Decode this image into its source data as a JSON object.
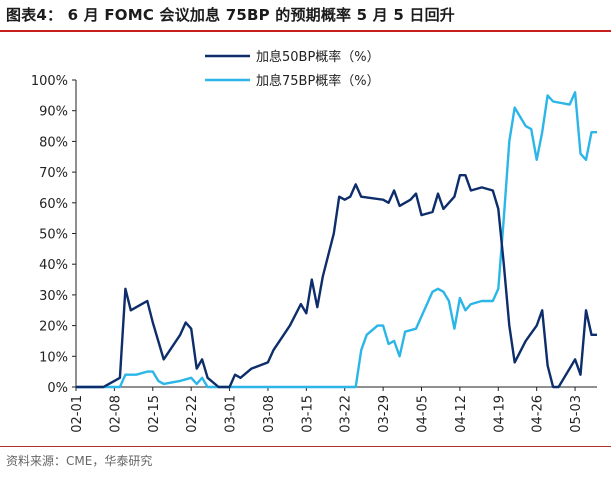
{
  "header": {
    "title": "图表4：  6 月 FOMC 会议加息 75BP 的预期概率 5 月 5 日回升"
  },
  "footer": {
    "source": "资料来源：CME，华泰研究"
  },
  "colors": {
    "series_50bp": "#0d2d6b",
    "series_75bp": "#2cb6e8",
    "title_rule": "#c81e1e"
  },
  "chart_data": {
    "type": "line",
    "title": "",
    "xlabel": "",
    "ylabel": "",
    "ylim": [
      0,
      100
    ],
    "xlim": [
      "2022-02-01",
      "2022-05-06"
    ],
    "grid": false,
    "legend_position": "top-center",
    "y_ticks": [
      "0%",
      "10%",
      "20%",
      "30%",
      "40%",
      "50%",
      "60%",
      "70%",
      "80%",
      "90%",
      "100%"
    ],
    "y_tick_values": [
      0,
      10,
      20,
      30,
      40,
      50,
      60,
      70,
      80,
      90,
      100
    ],
    "x_ticks": [
      "02-01",
      "02-08",
      "02-15",
      "02-22",
      "03-01",
      "03-08",
      "03-15",
      "03-22",
      "03-29",
      "04-05",
      "04-12",
      "04-19",
      "04-26",
      "05-03"
    ],
    "x_tick_dates": [
      "2022-02-01",
      "2022-02-08",
      "2022-02-15",
      "2022-02-22",
      "2022-03-01",
      "2022-03-08",
      "2022-03-15",
      "2022-03-22",
      "2022-03-29",
      "2022-04-05",
      "2022-04-12",
      "2022-04-19",
      "2022-04-26",
      "2022-05-03"
    ],
    "series": [
      {
        "name": "加息50BP概率（%）",
        "points": [
          [
            "2022-02-01",
            0
          ],
          [
            "2022-02-06",
            0
          ],
          [
            "2022-02-08",
            2
          ],
          [
            "2022-02-09",
            3
          ],
          [
            "2022-02-10",
            32
          ],
          [
            "2022-02-11",
            25
          ],
          [
            "2022-02-13",
            27
          ],
          [
            "2022-02-14",
            28
          ],
          [
            "2022-02-15",
            21
          ],
          [
            "2022-02-17",
            9
          ],
          [
            "2022-02-20",
            17
          ],
          [
            "2022-02-21",
            21
          ],
          [
            "2022-02-22",
            19
          ],
          [
            "2022-02-23",
            6
          ],
          [
            "2022-02-24",
            9
          ],
          [
            "2022-02-25",
            3
          ],
          [
            "2022-02-27",
            0
          ],
          [
            "2022-03-01",
            0
          ],
          [
            "2022-03-02",
            4
          ],
          [
            "2022-03-03",
            3
          ],
          [
            "2022-03-05",
            6
          ],
          [
            "2022-03-08",
            8
          ],
          [
            "2022-03-09",
            12
          ],
          [
            "2022-03-12",
            20
          ],
          [
            "2022-03-14",
            27
          ],
          [
            "2022-03-15",
            24
          ],
          [
            "2022-03-16",
            35
          ],
          [
            "2022-03-17",
            26
          ],
          [
            "2022-03-18",
            36
          ],
          [
            "2022-03-20",
            50
          ],
          [
            "2022-03-21",
            62
          ],
          [
            "2022-03-22",
            61
          ],
          [
            "2022-03-23",
            62
          ],
          [
            "2022-03-24",
            66
          ],
          [
            "2022-03-25",
            62
          ],
          [
            "2022-03-29",
            61
          ],
          [
            "2022-03-30",
            60
          ],
          [
            "2022-03-31",
            64
          ],
          [
            "2022-04-01",
            59
          ],
          [
            "2022-04-03",
            61
          ],
          [
            "2022-04-04",
            63
          ],
          [
            "2022-04-05",
            56
          ],
          [
            "2022-04-07",
            57
          ],
          [
            "2022-04-08",
            63
          ],
          [
            "2022-04-09",
            58
          ],
          [
            "2022-04-11",
            62
          ],
          [
            "2022-04-12",
            69
          ],
          [
            "2022-04-13",
            69
          ],
          [
            "2022-04-14",
            64
          ],
          [
            "2022-04-16",
            65
          ],
          [
            "2022-04-18",
            64
          ],
          [
            "2022-04-19",
            58
          ],
          [
            "2022-04-20",
            40
          ],
          [
            "2022-04-21",
            20
          ],
          [
            "2022-04-22",
            8
          ],
          [
            "2022-04-24",
            15
          ],
          [
            "2022-04-26",
            20
          ],
          [
            "2022-04-27",
            25
          ],
          [
            "2022-04-28",
            7
          ],
          [
            "2022-04-29",
            0
          ],
          [
            "2022-04-30",
            0
          ],
          [
            "2022-05-02",
            6
          ],
          [
            "2022-05-03",
            9
          ],
          [
            "2022-05-04",
            4
          ],
          [
            "2022-05-05",
            25
          ],
          [
            "2022-05-06",
            17
          ],
          [
            "2022-05-07",
            17
          ]
        ]
      },
      {
        "name": "加息75BP概率（%）",
        "points": [
          [
            "2022-02-01",
            0
          ],
          [
            "2022-02-09",
            0
          ],
          [
            "2022-02-10",
            4
          ],
          [
            "2022-02-12",
            4
          ],
          [
            "2022-02-14",
            5
          ],
          [
            "2022-02-15",
            5
          ],
          [
            "2022-02-16",
            2
          ],
          [
            "2022-02-17",
            1
          ],
          [
            "2022-02-20",
            2
          ],
          [
            "2022-02-22",
            3
          ],
          [
            "2022-02-23",
            1
          ],
          [
            "2022-02-24",
            3
          ],
          [
            "2022-02-25",
            0
          ],
          [
            "2022-03-01",
            0
          ],
          [
            "2022-03-08",
            0
          ],
          [
            "2022-03-15",
            0
          ],
          [
            "2022-03-22",
            0
          ],
          [
            "2022-03-24",
            0
          ],
          [
            "2022-03-25",
            12
          ],
          [
            "2022-03-26",
            17
          ],
          [
            "2022-03-28",
            20
          ],
          [
            "2022-03-29",
            20
          ],
          [
            "2022-03-30",
            14
          ],
          [
            "2022-03-31",
            15
          ],
          [
            "2022-04-01",
            10
          ],
          [
            "2022-04-02",
            18
          ],
          [
            "2022-04-04",
            19
          ],
          [
            "2022-04-05",
            23
          ],
          [
            "2022-04-07",
            31
          ],
          [
            "2022-04-08",
            32
          ],
          [
            "2022-04-09",
            31
          ],
          [
            "2022-04-10",
            28
          ],
          [
            "2022-04-11",
            19
          ],
          [
            "2022-04-12",
            29
          ],
          [
            "2022-04-13",
            25
          ],
          [
            "2022-04-14",
            27
          ],
          [
            "2022-04-16",
            28
          ],
          [
            "2022-04-18",
            28
          ],
          [
            "2022-04-19",
            32
          ],
          [
            "2022-04-20",
            55
          ],
          [
            "2022-04-21",
            80
          ],
          [
            "2022-04-22",
            91
          ],
          [
            "2022-04-24",
            85
          ],
          [
            "2022-04-25",
            84
          ],
          [
            "2022-04-26",
            74
          ],
          [
            "2022-04-27",
            83
          ],
          [
            "2022-04-28",
            95
          ],
          [
            "2022-04-29",
            93
          ],
          [
            "2022-05-02",
            92
          ],
          [
            "2022-05-03",
            96
          ],
          [
            "2022-05-04",
            76
          ],
          [
            "2022-05-05",
            74
          ],
          [
            "2022-05-06",
            83
          ],
          [
            "2022-05-07",
            83
          ]
        ]
      }
    ]
  }
}
